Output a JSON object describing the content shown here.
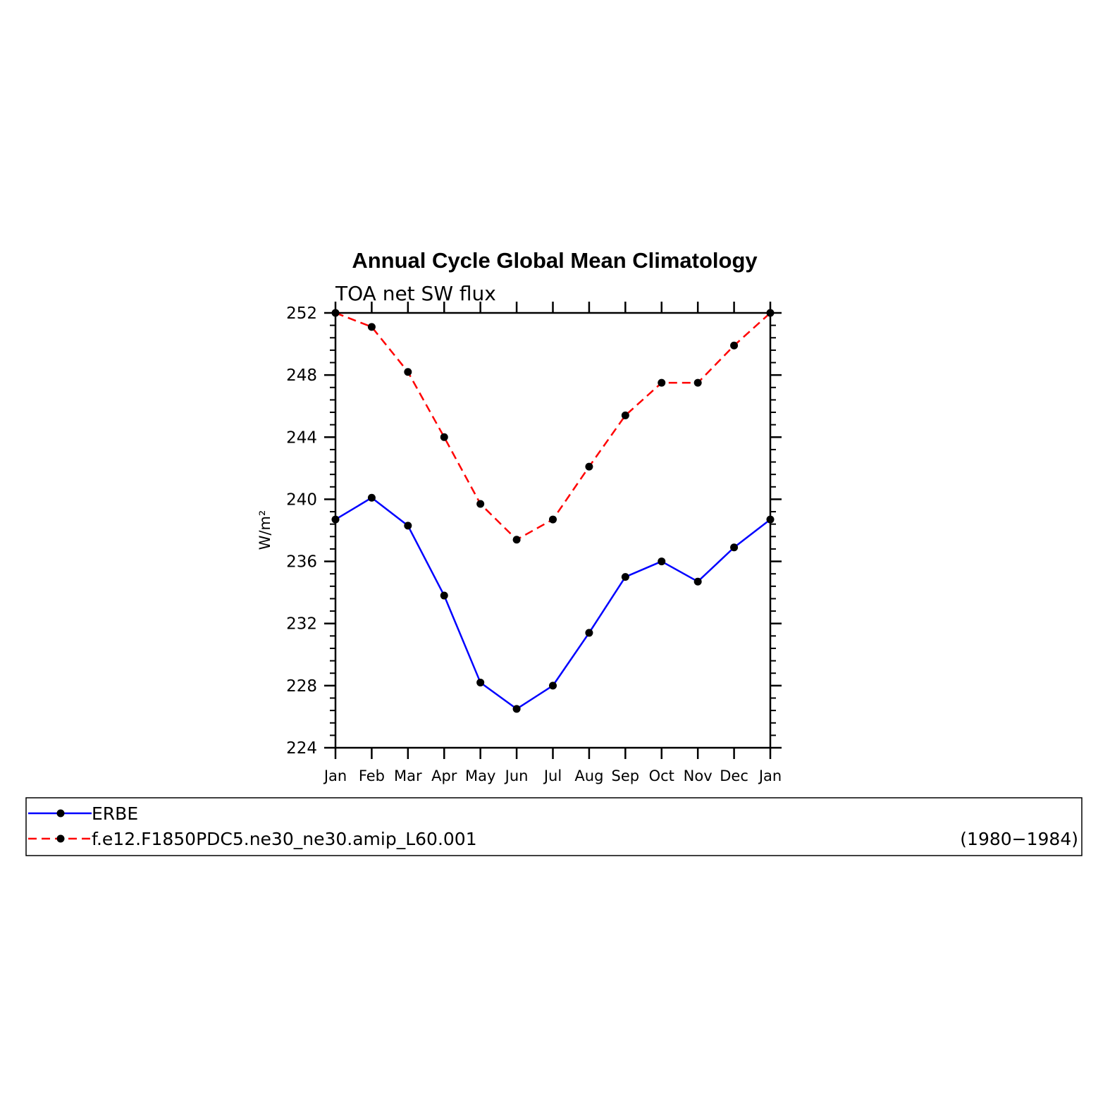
{
  "chart_data": {
    "type": "line",
    "title": "Annual Cycle Global Mean Climatology",
    "subtitle": "TOA net SW flux",
    "ylabel": "W/m²",
    "xlabel": "",
    "categories": [
      "Jan",
      "Feb",
      "Mar",
      "Apr",
      "May",
      "Jun",
      "Jul",
      "Aug",
      "Sep",
      "Oct",
      "Nov",
      "Dec",
      "Jan"
    ],
    "ylim": [
      224,
      252
    ],
    "yticks": [
      224,
      228,
      232,
      236,
      240,
      244,
      248,
      252
    ],
    "yticks_labels": [
      "224",
      "228",
      "232",
      "236",
      "240",
      "244",
      "248",
      "252"
    ],
    "series": [
      {
        "name": "ERBE",
        "color": "#0000ff",
        "dash": "solid",
        "values": [
          238.7,
          240.1,
          238.3,
          233.8,
          228.2,
          226.5,
          228.0,
          231.4,
          235.0,
          236.0,
          234.7,
          236.9,
          238.7
        ]
      },
      {
        "name": "f.e12.F1850PDC5.ne30_ne30.amip_L60.001",
        "color": "#ff0000",
        "dash": "dashed",
        "values": [
          252.0,
          251.1,
          248.2,
          244.0,
          239.7,
          237.4,
          238.7,
          242.1,
          245.4,
          247.5,
          247.5,
          249.9,
          252.0
        ]
      }
    ],
    "grid": false,
    "legend": {
      "placement": "bottom",
      "period_label": "(1980−1984)"
    }
  }
}
